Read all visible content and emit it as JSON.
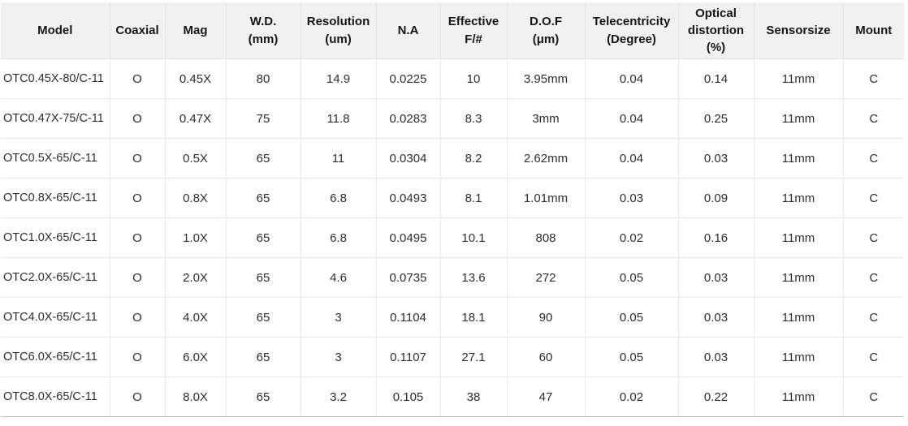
{
  "chart_data": {
    "type": "table",
    "columns": [
      "Model",
      "Coaxial",
      "Mag",
      "W.D.\n(mm)",
      "Resolution\n(um)",
      "N.A",
      "Effective\nF/#",
      "D.O.F\n(μm)",
      "Telecentricity\n(Degree)",
      "Optical\ndistortion\n(%)",
      "Sensorsize",
      "Mount"
    ],
    "rows": [
      [
        "OTC0.45X-80/C-11",
        "O",
        "0.45X",
        "80",
        "14.9",
        "0.0225",
        "10",
        "3.95mm",
        "0.04",
        "0.14",
        "11mm",
        "C"
      ],
      [
        "OTC0.47X-75/C-11",
        "O",
        "0.47X",
        "75",
        "11.8",
        "0.0283",
        "8.3",
        "3mm",
        "0.04",
        "0.25",
        "11mm",
        "C"
      ],
      [
        "OTC0.5X-65/C-11",
        "O",
        "0.5X",
        "65",
        "11",
        "0.0304",
        "8.2",
        "2.62mm",
        "0.04",
        "0.03",
        "11mm",
        "C"
      ],
      [
        "OTC0.8X-65/C-11",
        "O",
        "0.8X",
        "65",
        "6.8",
        "0.0493",
        "8.1",
        "1.01mm",
        "0.03",
        "0.09",
        "11mm",
        "C"
      ],
      [
        "OTC1.0X-65/C-11",
        "O",
        "1.0X",
        "65",
        "6.8",
        "0.0495",
        "10.1",
        "808",
        "0.02",
        "0.16",
        "11mm",
        "C"
      ],
      [
        "OTC2.0X-65/C-11",
        "O",
        "2.0X",
        "65",
        "4.6",
        "0.0735",
        "13.6",
        "272",
        "0.05",
        "0.03",
        "11mm",
        "C"
      ],
      [
        "OTC4.0X-65/C-11",
        "O",
        "4.0X",
        "65",
        "3",
        "0.1104",
        "18.1",
        "90",
        "0.05",
        "0.03",
        "11mm",
        "C"
      ],
      [
        "OTC6.0X-65/C-11",
        "O",
        "6.0X",
        "65",
        "3",
        "0.1107",
        "27.1",
        "60",
        "0.05",
        "0.03",
        "11mm",
        "C"
      ],
      [
        "OTC8.0X-65/C-11",
        "O",
        "8.0X",
        "65",
        "3.2",
        "0.105",
        "38",
        "47",
        "0.02",
        "0.22",
        "11mm",
        "C"
      ]
    ]
  },
  "colors": {
    "header_bg": "#f1f1f1",
    "grid": "#e4e4e4",
    "grid_light": "#e9e9e9",
    "bottom_line": "#b9b9b9",
    "header_text": "#161616",
    "body_text": "#2e2e2e"
  }
}
